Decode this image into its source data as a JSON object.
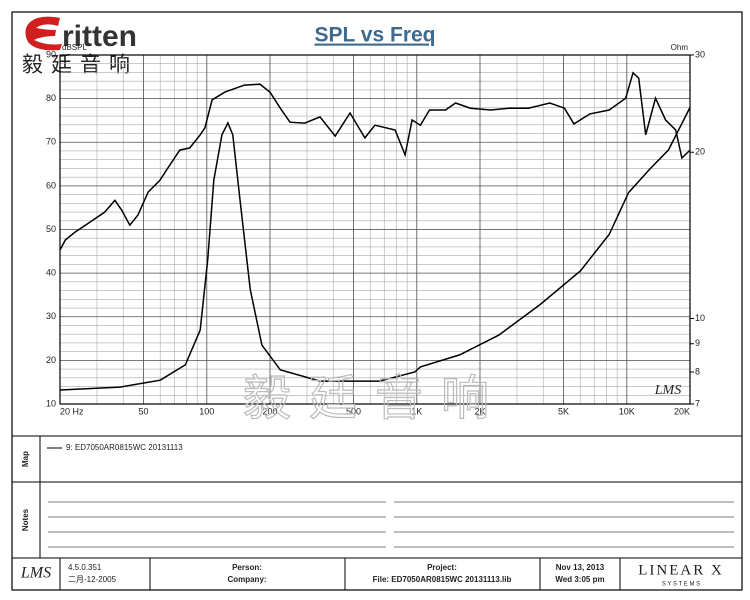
{
  "logo": {
    "text": "ritten",
    "chinese": "毅廷音响"
  },
  "watermark": "毅廷音响",
  "plot_logo": "LMS",
  "chart_data": {
    "type": "line",
    "title": "SPL vs Freq",
    "ylabel": "dBSPL",
    "y2label": "Ohm",
    "xscale": "log",
    "y2scale": "log",
    "grid": true,
    "xlim": [
      20,
      20000
    ],
    "ylim": [
      10,
      90
    ],
    "y2lim": [
      7,
      30
    ],
    "xticks": [
      {
        "value": 20,
        "label": "20 Hz"
      },
      50,
      100,
      200,
      500,
      {
        "value": 1000,
        "label": "1K"
      },
      {
        "value": 2000,
        "label": "2K"
      },
      {
        "value": 5000,
        "label": "5K"
      },
      {
        "value": 10000,
        "label": "10K"
      },
      {
        "value": 20000,
        "label": "20K"
      }
    ],
    "yticks": [
      10,
      20,
      30,
      40,
      50,
      60,
      70,
      80,
      90
    ],
    "y2ticks": [
      7,
      8,
      9,
      10,
      20,
      30
    ],
    "series": [
      {
        "color": "#000000",
        "x": [
          20,
          21.2,
          23.6,
          27.8,
          32.7,
          36.5,
          39.4,
          43,
          47,
          52.6,
          59.9,
          66.7,
          74.4,
          83,
          93,
          98,
          106,
          122,
          151,
          179,
          200,
          224,
          249,
          293,
          346,
          409,
          481,
          566,
          632,
          788,
          880,
          950,
          1040,
          1150,
          1370,
          1530,
          1800,
          2250,
          2770,
          3400,
          4300,
          5050,
          5600,
          6670,
          8250,
          9880,
          10700,
          11400,
          12300,
          13700,
          15300,
          17100,
          18300,
          20000
        ],
        "values": [
          45.3,
          47.6,
          49.4,
          51.7,
          54,
          56.7,
          54.4,
          51,
          53.3,
          58.6,
          61.3,
          64.8,
          68.2,
          68.7,
          71.7,
          73.3,
          79.7,
          81.5,
          83.1,
          83.3,
          81.5,
          77.8,
          74.6,
          74.4,
          75.8,
          71.4,
          76.7,
          71,
          73.9,
          72.8,
          67.1,
          75.1,
          73.9,
          77.4,
          77.4,
          79,
          77.8,
          77.4,
          77.8,
          77.8,
          79,
          77.8,
          74.2,
          76.5,
          77.4,
          80.1,
          85.9,
          84.7,
          71.7,
          80.1,
          75.1,
          72.8,
          66.4,
          68.2
        ]
      },
      {
        "color": "#000000",
        "axis": "y2",
        "x": [
          20,
          38.6,
          60,
          79,
          93,
          101,
          108,
          118,
          126,
          133,
          144,
          161,
          183,
          224,
          346,
          666,
          978,
          1040,
          1600,
          2460,
          3870,
          6020,
          8250,
          10200,
          12800,
          15800,
          20000
        ],
        "values": [
          7.42,
          7.51,
          7.73,
          8.24,
          9.53,
          12.76,
          17.8,
          21.5,
          22.6,
          21.5,
          16.4,
          11.3,
          8.95,
          8.07,
          7.7,
          7.7,
          8.0,
          8.17,
          8.59,
          9.33,
          10.6,
          12.2,
          14.2,
          16.9,
          18.6,
          20.2,
          24.1
        ]
      }
    ]
  },
  "map": {
    "label": "Map",
    "entry": "9: ED7050AR0815WC  20131113"
  },
  "notes": {
    "label": "Notes"
  },
  "footer": {
    "logo": "LMS",
    "version": "4.5.0.351",
    "build_date": "二月-12-2005",
    "person": "Person:",
    "company": "Company:",
    "project": "Project:",
    "file": "File: ED7050AR0815WC 20131113.lib",
    "date": "Nov 13, 2013",
    "time": "Wed  3:05 pm",
    "brand": "LINEAR X",
    "brand_sub": "S Y S T E M S"
  }
}
